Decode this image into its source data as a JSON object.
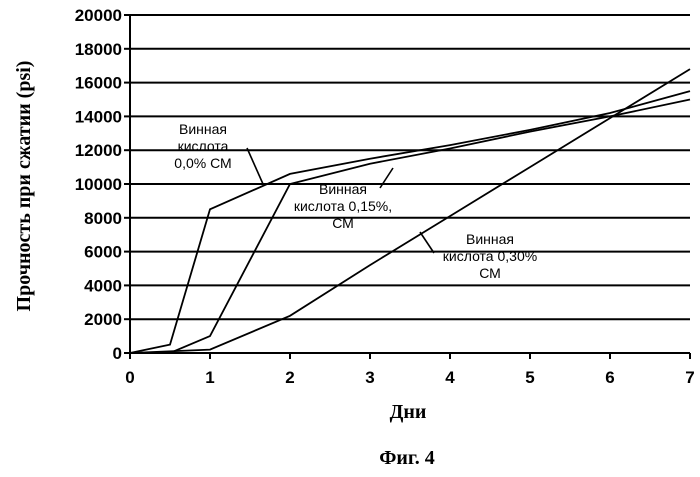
{
  "chart_data": {
    "type": "line",
    "title": "",
    "xlabel": "Дни",
    "ylabel": "Прочность при сжатии (psi)",
    "caption": "Фиг. 4",
    "xlim": [
      0,
      7
    ],
    "ylim": [
      0,
      20000
    ],
    "x_ticks": [
      "0",
      "1",
      "2",
      "3",
      "4",
      "5",
      "6",
      "7"
    ],
    "y_ticks": [
      "0",
      "2000",
      "4000",
      "6000",
      "8000",
      "10000",
      "12000",
      "14000",
      "16000",
      "18000",
      "20000"
    ],
    "grid": "horizontal",
    "series": [
      {
        "name": "Винная кислота 0,0% СМ",
        "x": [
          0,
          0.5,
          1,
          2,
          3,
          4,
          5,
          6,
          7
        ],
        "y": [
          0,
          500,
          8500,
          10600,
          11500,
          12300,
          13200,
          14200,
          15500
        ]
      },
      {
        "name": "Винная кислота 0,15% СМ",
        "x": [
          0,
          0.5,
          1,
          2,
          3,
          4,
          5,
          6,
          7
        ],
        "y": [
          0,
          0,
          1000,
          10000,
          11200,
          12100,
          13100,
          14000,
          15000
        ]
      },
      {
        "name": "Винная кислота 0,30% СМ",
        "x": [
          0,
          1,
          2,
          3,
          4,
          5,
          6,
          7
        ],
        "y": [
          0,
          200,
          2200,
          5200,
          8100,
          11000,
          13900,
          16800
        ]
      }
    ],
    "annotations": [
      {
        "lines": [
          "Винная",
          "кислота",
          "0,0% СМ"
        ]
      },
      {
        "lines": [
          "Винная",
          "кислота 0,15%,",
          "СМ"
        ]
      },
      {
        "lines": [
          "Винная",
          "кислота 0,30%",
          "СМ"
        ]
      }
    ]
  }
}
